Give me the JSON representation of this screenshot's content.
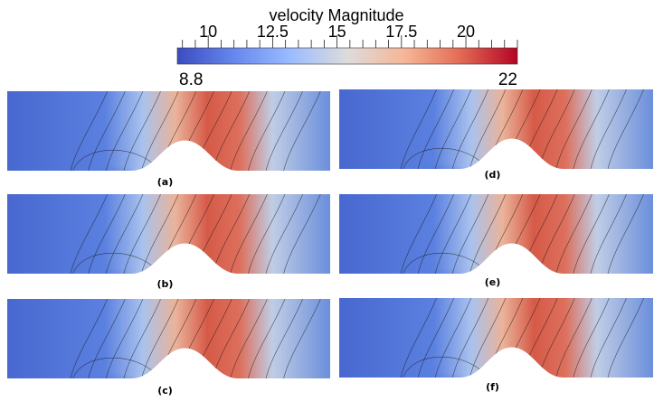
{
  "colorbar": {
    "title": "velocity Magnitude",
    "min": 8.8,
    "max": 22,
    "min_label": "8.8",
    "max_label": "22",
    "major_ticks": [
      {
        "value": 10,
        "label": "10"
      },
      {
        "value": 12.5,
        "label": "12.5"
      },
      {
        "value": 15,
        "label": "15"
      },
      {
        "value": 17.5,
        "label": "17.5"
      },
      {
        "value": 20,
        "label": "20"
      }
    ],
    "colors": [
      "#3b4cc0",
      "#7396f5",
      "#b0cbfb",
      "#dddddd",
      "#f6b395",
      "#e5705a",
      "#b40426"
    ]
  },
  "panels": [
    {
      "id": "a",
      "label": "(a)"
    },
    {
      "id": "b",
      "label": "(b)"
    },
    {
      "id": "c",
      "label": "(c)"
    },
    {
      "id": "d",
      "label": "(d)"
    },
    {
      "id": "e",
      "label": "(e)"
    },
    {
      "id": "f",
      "label": "(f)"
    }
  ]
}
